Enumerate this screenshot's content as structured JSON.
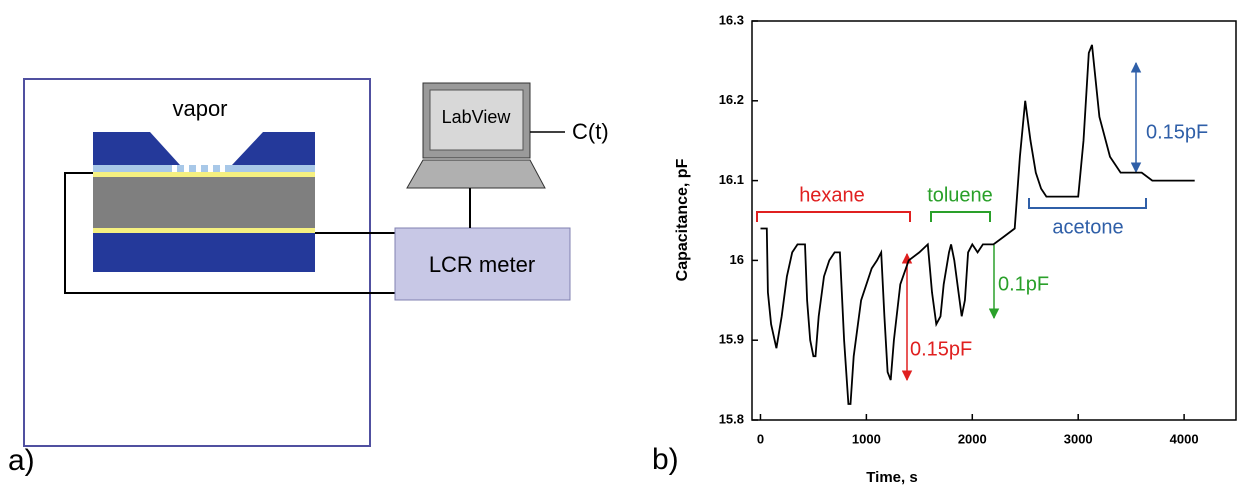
{
  "panel_a": {
    "label": "a)",
    "vapor": "vapor",
    "software": "LabView",
    "output": "C(t)",
    "meter": "LCR meter"
  },
  "chart_data": {
    "type": "line",
    "panel_label": "b)",
    "xlabel": "Time, s",
    "ylabel": "Capacitance, pF",
    "x": [
      0,
      60,
      70,
      100,
      150,
      200,
      250,
      300,
      350,
      420,
      440,
      470,
      500,
      520,
      550,
      600,
      650,
      700,
      750,
      790,
      830,
      850,
      880,
      950,
      1050,
      1100,
      1140,
      1170,
      1200,
      1230,
      1260,
      1320,
      1400,
      1500,
      1580,
      1620,
      1660,
      1700,
      1730,
      1780,
      1800,
      1830,
      1870,
      1900,
      1930,
      1960,
      2000,
      2050,
      2100,
      2200,
      2300,
      2400,
      2450,
      2500,
      2550,
      2600,
      2650,
      2700,
      2900,
      3000,
      3050,
      3100,
      3130,
      3200,
      3300,
      3400,
      3600,
      3700,
      4100
    ],
    "values": [
      16.04,
      16.04,
      15.96,
      15.92,
      15.89,
      15.93,
      15.98,
      16.01,
      16.02,
      16.02,
      15.95,
      15.9,
      15.88,
      15.88,
      15.93,
      15.98,
      16.0,
      16.01,
      16.01,
      15.9,
      15.82,
      15.82,
      15.88,
      15.95,
      15.99,
      16.0,
      16.01,
      15.93,
      15.86,
      15.85,
      15.9,
      15.97,
      16.0,
      16.01,
      16.02,
      15.96,
      15.92,
      15.93,
      15.97,
      16.01,
      16.02,
      16.0,
      15.96,
      15.93,
      15.95,
      16.01,
      16.02,
      16.01,
      16.02,
      16.02,
      16.03,
      16.04,
      16.13,
      16.2,
      16.15,
      16.11,
      16.09,
      16.08,
      16.08,
      16.08,
      16.15,
      16.26,
      16.27,
      16.18,
      16.13,
      16.11,
      16.11,
      16.1,
      16.1
    ],
    "color": "#000000",
    "xlim": [
      -80,
      4490
    ],
    "xticks": [
      0,
      1000,
      2000,
      3000,
      4000
    ],
    "ylim": [
      15.8,
      16.3
    ],
    "yticks": [
      15.8,
      15.9,
      16.0,
      16.1,
      16.2,
      16.3
    ],
    "annotations": {
      "hexane": "hexane",
      "toluene": "toluene",
      "acetone": "acetone",
      "red_delta": "0.15pF",
      "green_delta": "0.1pF",
      "blue_delta": "0.15pF"
    }
  }
}
